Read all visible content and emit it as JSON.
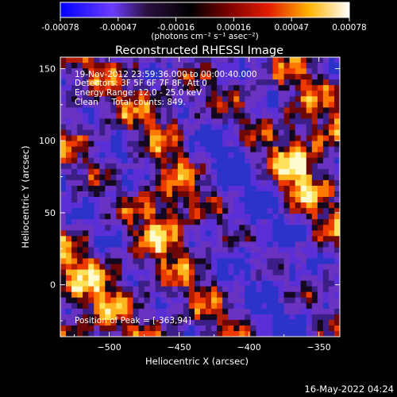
{
  "chart_data": {
    "type": "heatmap",
    "title": "Reconstructed RHESSI Image",
    "xlabel": "Heliocentric X (arcsec)",
    "ylabel": "Heliocentric Y (arcsec)",
    "xlim": [
      -535,
      -335
    ],
    "ylim": [
      -36,
      158
    ],
    "x_ticks": [
      -500,
      -450,
      -400,
      -350
    ],
    "y_ticks": [
      0,
      50,
      100,
      150
    ],
    "colorbar": {
      "label": "(photons cm⁻² s⁻¹ asec⁻²)",
      "range": [
        -0.00078,
        0.00078
      ],
      "ticks": [
        "-0.00078",
        "-0.00047",
        "-0.00016",
        "0.00016",
        "0.00047",
        "0.00078"
      ],
      "colormap": [
        "#0000ff",
        "#8a2be2",
        "#000000",
        "#b22222",
        "#ff4500",
        "#ffa500",
        "#ffff66",
        "#ffffff"
      ]
    },
    "annotations": {
      "time_range": "19-Nov-2012 23:59:36.000 to 00:00:40.000",
      "detectors": "Detectors: 3F 5F 6F 7F 8F, Att 0",
      "energy_range": "Energy Range: 12.0 - 25.0 keV",
      "clean_counts": "Clean     Total counts: 849.",
      "peak_position": "Position of Peak = [-363,94]"
    },
    "footer_date": "16-May-2022 04:24"
  }
}
